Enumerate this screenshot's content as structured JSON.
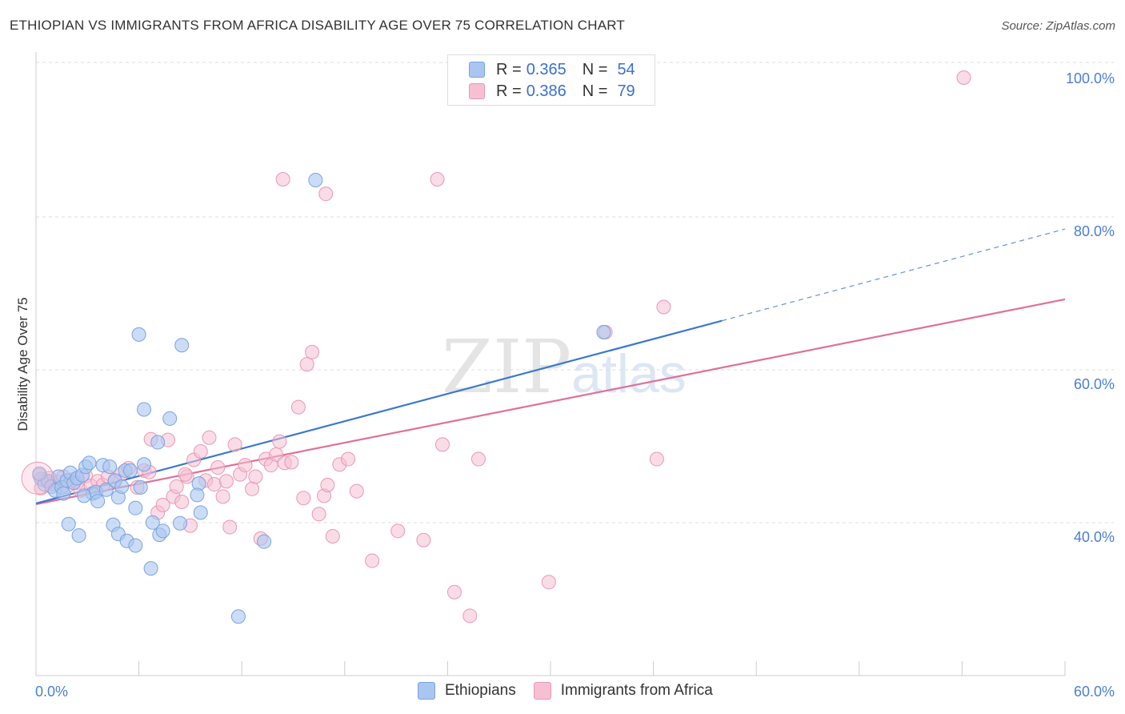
{
  "title": "ETHIOPIAN VS IMMIGRANTS FROM AFRICA DISABILITY AGE OVER 75 CORRELATION CHART",
  "source": "Source: ZipAtlas.com",
  "watermark": {
    "zip": "ZIP",
    "atlas": "atlas"
  },
  "legend": {
    "rows": [
      {
        "r_label": "R = ",
        "r_value": "0.365",
        "n_label": "N = ",
        "n_value": "54"
      },
      {
        "r_label": "R = ",
        "r_value": "0.386",
        "n_label": "N = ",
        "n_value": "79"
      }
    ]
  },
  "bottom_legend": {
    "series_a": "Ethiopians",
    "series_b": "Immigrants from Africa"
  },
  "colors": {
    "blue_fill": "#a9c6f0",
    "blue_stroke": "#7aa3e0",
    "blue_line": "#3a78d0",
    "pink_fill": "#f6c0d2",
    "pink_stroke": "#e898b4",
    "pink_line": "#e0709a",
    "grid": "#dddddd",
    "tick_label": "#4a7fd4"
  },
  "chart_data": {
    "type": "scatter",
    "title": "ETHIOPIAN VS IMMIGRANTS FROM AFRICA DISABILITY AGE OVER 75 CORRELATION CHART",
    "xlabel": "",
    "ylabel": "Disability Age Over 75",
    "xlim": [
      0,
      60
    ],
    "ylim": [
      20,
      102
    ],
    "x_tick_labels": [
      "0.0%",
      "60.0%"
    ],
    "y_ticks": [
      40,
      60,
      80,
      100
    ],
    "y_tick_labels": [
      "40.0%",
      "60.0%",
      "80.0%",
      "100.0%"
    ],
    "grid": true,
    "legend_position": "top-center",
    "series": [
      {
        "name": "Ethiopians",
        "color": "#a9c6f0",
        "trend": {
          "x": [
            0,
            40
          ],
          "y": [
            44.3,
            68.2
          ],
          "dashed_to": [
            60,
            80.2
          ]
        },
        "points": [
          [
            0.3,
            47.5
          ],
          [
            0.5,
            46.8
          ],
          [
            0.7,
            47.2
          ],
          [
            0.9,
            46.5
          ],
          [
            1.1,
            46.0
          ],
          [
            1.3,
            47.8
          ],
          [
            1.5,
            46.4
          ],
          [
            1.6,
            45.6
          ],
          [
            1.8,
            47.3
          ],
          [
            2.0,
            48.3
          ],
          [
            2.2,
            47.0
          ],
          [
            2.4,
            47.6
          ],
          [
            2.7,
            48.0
          ],
          [
            2.9,
            49.1
          ],
          [
            3.1,
            49.6
          ],
          [
            3.3,
            45.6
          ],
          [
            3.5,
            45.8
          ],
          [
            3.6,
            44.6
          ],
          [
            3.9,
            49.3
          ],
          [
            4.1,
            46.1
          ],
          [
            4.3,
            49.1
          ],
          [
            4.6,
            47.3
          ],
          [
            4.8,
            45.1
          ],
          [
            5.0,
            46.5
          ],
          [
            5.2,
            48.6
          ],
          [
            5.5,
            48.6
          ],
          [
            5.8,
            43.7
          ],
          [
            6.1,
            46.4
          ],
          [
            6.3,
            49.4
          ],
          [
            1.9,
            41.6
          ],
          [
            2.5,
            40.1
          ],
          [
            4.5,
            41.5
          ],
          [
            4.8,
            40.3
          ],
          [
            5.3,
            39.4
          ],
          [
            5.8,
            38.8
          ],
          [
            6.8,
            41.8
          ],
          [
            7.2,
            40.2
          ],
          [
            7.4,
            40.7
          ],
          [
            8.4,
            41.7
          ],
          [
            9.6,
            43.1
          ],
          [
            6.3,
            56.6
          ],
          [
            7.8,
            55.4
          ],
          [
            7.1,
            52.3
          ],
          [
            6.0,
            66.4
          ],
          [
            8.5,
            65.0
          ],
          [
            16.3,
            86.6
          ],
          [
            13.3,
            39.3
          ],
          [
            11.8,
            29.5
          ],
          [
            6.7,
            35.8
          ],
          [
            9.5,
            46.9
          ],
          [
            9.4,
            45.4
          ],
          [
            2.8,
            45.3
          ],
          [
            0.2,
            48.2
          ],
          [
            33.1,
            66.7
          ]
        ]
      },
      {
        "name": "Immigrants from Africa",
        "color": "#f6c0d2",
        "trend": {
          "x": [
            0,
            60
          ],
          "y": [
            44.2,
            71.0
          ]
        },
        "points": [
          [
            0.2,
            48.0
          ],
          [
            0.5,
            47.3
          ],
          [
            0.8,
            47.6
          ],
          [
            1.0,
            46.9
          ],
          [
            1.3,
            47.1
          ],
          [
            1.6,
            47.8
          ],
          [
            1.8,
            46.5
          ],
          [
            2.1,
            47.4
          ],
          [
            2.4,
            47.0
          ],
          [
            2.6,
            46.0
          ],
          [
            2.9,
            47.9
          ],
          [
            3.2,
            46.6
          ],
          [
            3.6,
            47.2
          ],
          [
            3.9,
            46.7
          ],
          [
            4.2,
            47.8
          ],
          [
            4.6,
            47.2
          ],
          [
            5.0,
            48.2
          ],
          [
            5.4,
            48.9
          ],
          [
            5.9,
            46.4
          ],
          [
            6.3,
            48.6
          ],
          [
            6.6,
            48.4
          ],
          [
            6.7,
            52.7
          ],
          [
            7.1,
            43.1
          ],
          [
            7.4,
            44.1
          ],
          [
            7.7,
            52.6
          ],
          [
            8.0,
            45.2
          ],
          [
            8.2,
            46.5
          ],
          [
            8.5,
            44.5
          ],
          [
            8.8,
            47.8
          ],
          [
            9.0,
            41.4
          ],
          [
            9.2,
            50.0
          ],
          [
            9.6,
            51.1
          ],
          [
            9.9,
            47.3
          ],
          [
            10.1,
            52.9
          ],
          [
            10.4,
            46.8
          ],
          [
            10.6,
            49.0
          ],
          [
            10.9,
            45.2
          ],
          [
            11.1,
            47.2
          ],
          [
            11.3,
            41.2
          ],
          [
            11.6,
            52.0
          ],
          [
            11.9,
            48.1
          ],
          [
            12.2,
            49.3
          ],
          [
            12.6,
            46.2
          ],
          [
            12.8,
            47.8
          ],
          [
            13.1,
            39.7
          ],
          [
            13.4,
            50.1
          ],
          [
            13.7,
            49.3
          ],
          [
            14.0,
            50.7
          ],
          [
            14.2,
            52.4
          ],
          [
            14.5,
            49.6
          ],
          [
            14.9,
            49.7
          ],
          [
            15.3,
            56.9
          ],
          [
            15.6,
            45.0
          ],
          [
            15.8,
            62.5
          ],
          [
            16.1,
            64.1
          ],
          [
            16.5,
            42.9
          ],
          [
            16.8,
            45.3
          ],
          [
            17.0,
            46.7
          ],
          [
            17.3,
            40.0
          ],
          [
            17.7,
            49.4
          ],
          [
            18.2,
            50.1
          ],
          [
            18.7,
            45.9
          ],
          [
            19.6,
            36.8
          ],
          [
            21.1,
            40.7
          ],
          [
            22.6,
            39.5
          ],
          [
            23.7,
            52.0
          ],
          [
            24.4,
            32.7
          ],
          [
            25.3,
            29.6
          ],
          [
            25.8,
            50.1
          ],
          [
            29.9,
            34.0
          ],
          [
            36.2,
            50.1
          ],
          [
            36.6,
            70.0
          ],
          [
            14.4,
            86.7
          ],
          [
            16.9,
            84.8
          ],
          [
            23.4,
            86.7
          ],
          [
            54.1,
            100.0
          ],
          [
            33.2,
            66.7
          ],
          [
            8.7,
            48.1
          ],
          [
            0.3,
            46.3
          ]
        ]
      }
    ]
  }
}
